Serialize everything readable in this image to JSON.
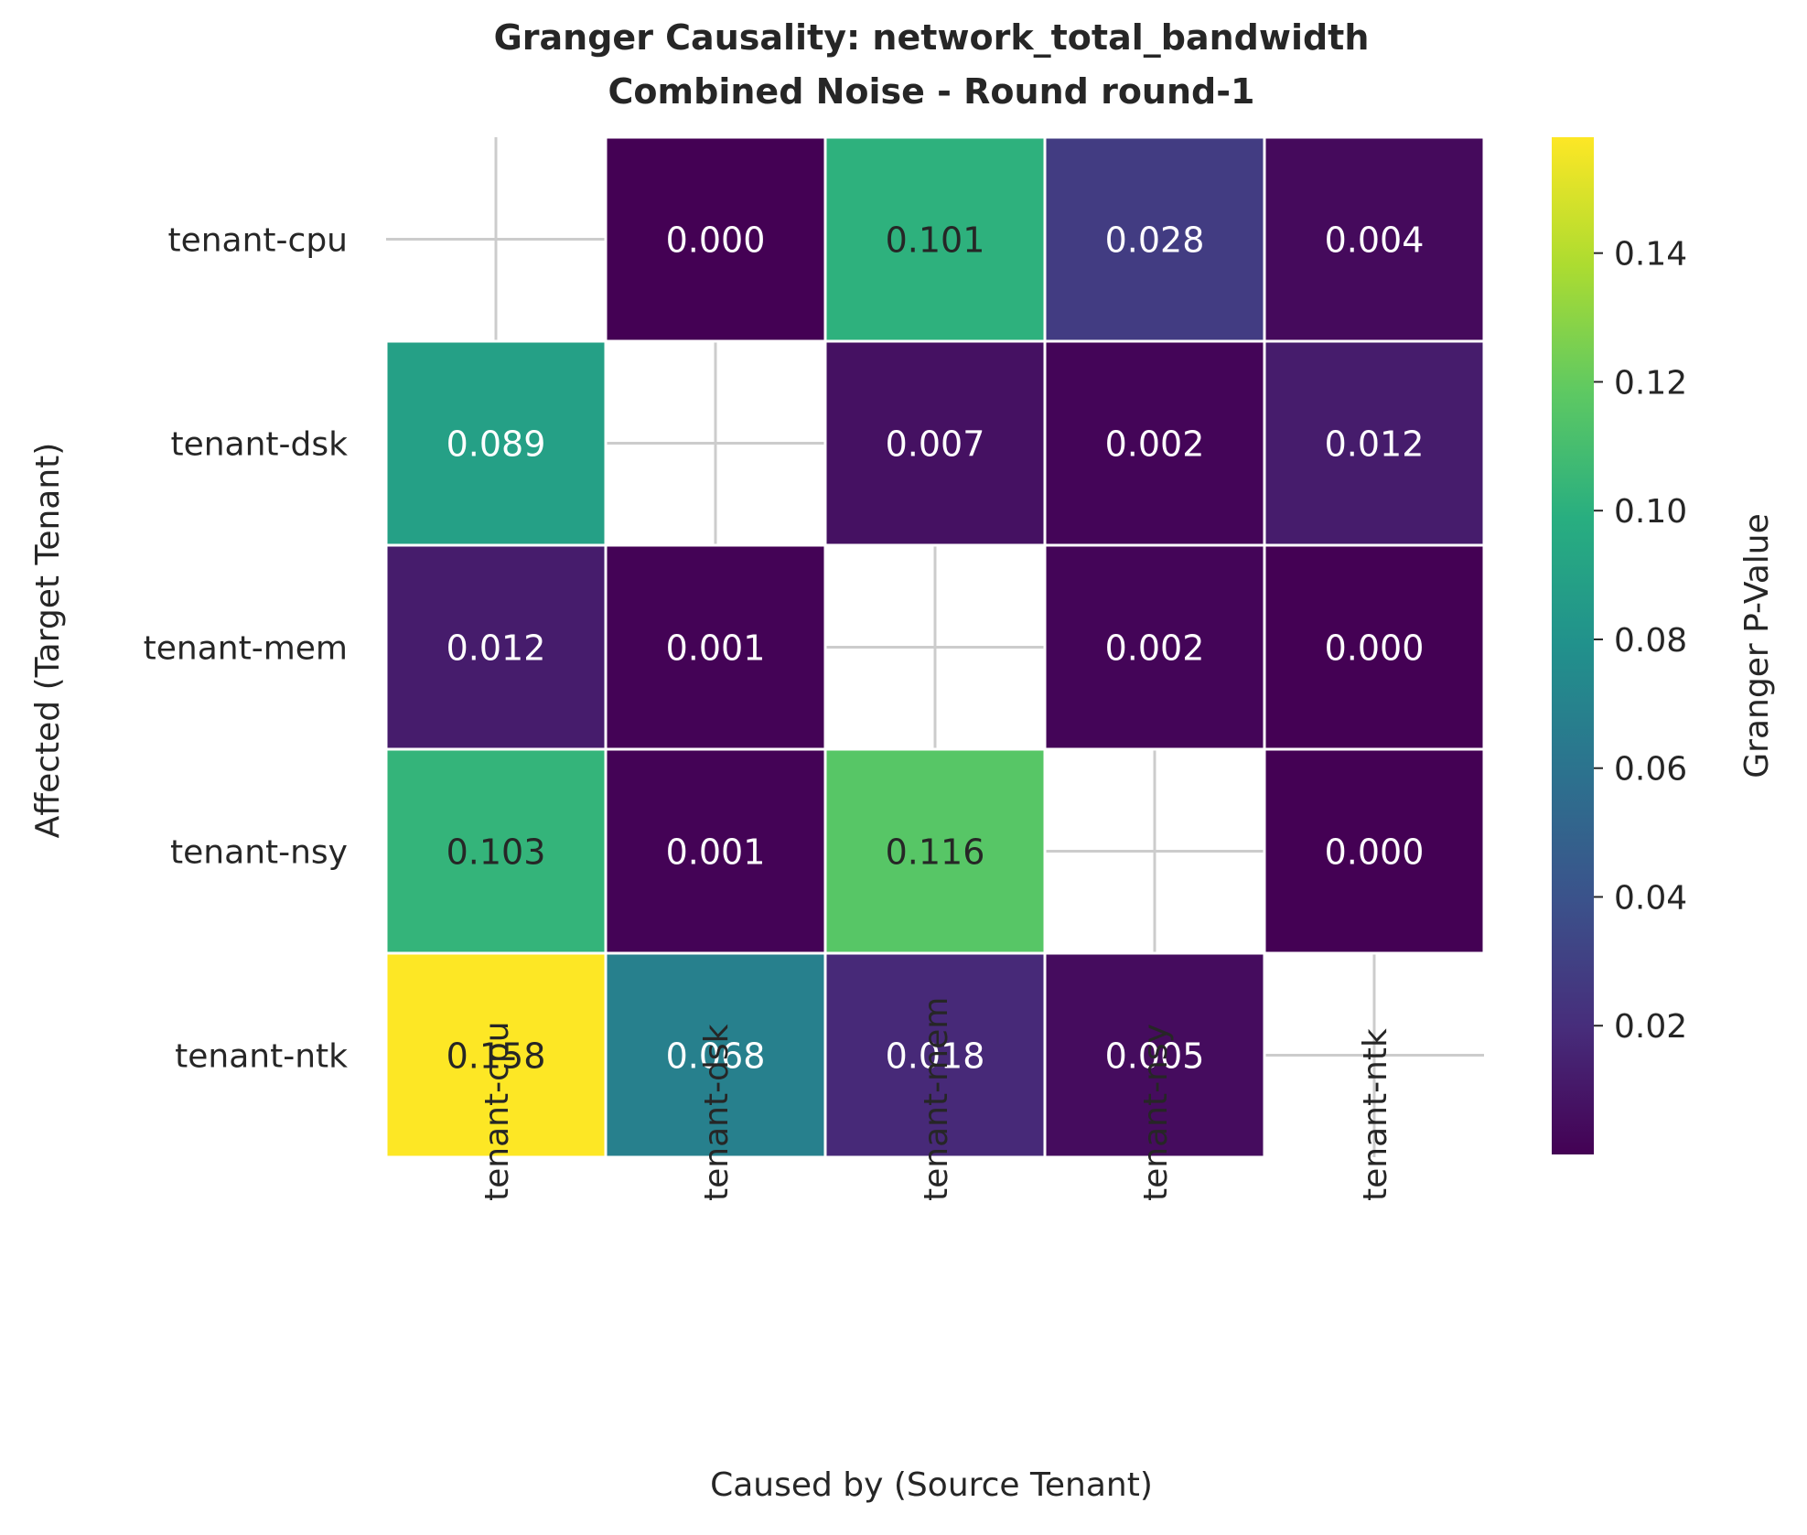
{
  "chart_data": {
    "type": "heatmap",
    "title": "Granger Causality: network_total_bandwidth",
    "subtitle": "Combined Noise - Round round-1",
    "xlabel": "Caused by (Source Tenant)",
    "ylabel": "Affected (Target Tenant)",
    "colorbar_label": "Granger P-Value",
    "colormap": "viridis",
    "colorbar_range": [
      0.0,
      0.158
    ],
    "colorbar_ticks": [
      "0.02",
      "0.04",
      "0.06",
      "0.08",
      "0.10",
      "0.12",
      "0.14"
    ],
    "x_categories": [
      "tenant-cpu",
      "tenant-dsk",
      "tenant-mem",
      "tenant-nsy",
      "tenant-ntk"
    ],
    "y_categories": [
      "tenant-cpu",
      "tenant-dsk",
      "tenant-mem",
      "tenant-nsy",
      "tenant-ntk"
    ],
    "values": [
      [
        null,
        0.0,
        0.101,
        0.028,
        0.004
      ],
      [
        0.089,
        null,
        0.007,
        0.002,
        0.012
      ],
      [
        0.012,
        0.001,
        null,
        0.002,
        0.0
      ],
      [
        0.103,
        0.001,
        0.116,
        null,
        0.0
      ],
      [
        0.158,
        0.068,
        0.018,
        0.005,
        null
      ]
    ],
    "cell_labels": [
      [
        "",
        "0.000",
        "0.101",
        "0.028",
        "0.004"
      ],
      [
        "0.089",
        "",
        "0.007",
        "0.002",
        "0.012"
      ],
      [
        "0.012",
        "0.001",
        "",
        "0.002",
        "0.000"
      ],
      [
        "0.103",
        "0.001",
        "0.116",
        "",
        "0.000"
      ],
      [
        "0.158",
        "0.068",
        "0.018",
        "0.005",
        ""
      ]
    ],
    "grid": true
  }
}
